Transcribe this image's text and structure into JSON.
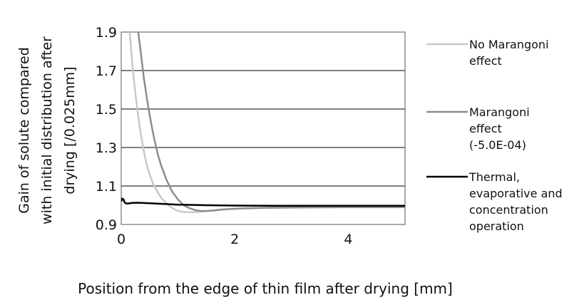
{
  "chart_data": {
    "type": "line",
    "xlabel": "Position from the edge of thin film after drying [mm]",
    "ylabel_lines": [
      "Gain of solute compared",
      "with initial distribution after",
      "drying [/0.025mm]"
    ],
    "xlim": [
      0,
      5
    ],
    "ylim": [
      0.9,
      1.9
    ],
    "x_ticks": [
      0,
      2,
      4
    ],
    "y_ticks": [
      0.9,
      1.1,
      1.3,
      1.5,
      1.7,
      1.9
    ],
    "y_tick_labels": [
      "0.9",
      "1.1",
      "1.3",
      "1.5",
      "1.7",
      "1.9"
    ],
    "grid": "horizontal",
    "legend_position": "right",
    "series": [
      {
        "name_lines": [
          "No Marangoni",
          "effect"
        ],
        "color": "#c8c8c8",
        "x": [
          0.15,
          0.2,
          0.25,
          0.3,
          0.35,
          0.4,
          0.45,
          0.5,
          0.55,
          0.6,
          0.7,
          0.8,
          0.9,
          1.0,
          1.1,
          1.2,
          1.3,
          1.5,
          1.8,
          2.2,
          3.0,
          4.0,
          5.0
        ],
        "y": [
          1.9,
          1.72,
          1.58,
          1.46,
          1.36,
          1.28,
          1.21,
          1.16,
          1.12,
          1.09,
          1.04,
          1.01,
          0.985,
          0.97,
          0.965,
          0.963,
          0.964,
          0.97,
          0.978,
          0.985,
          0.99,
          0.992,
          0.993
        ]
      },
      {
        "name_lines": [
          "Marangoni",
          "effect",
          "(-5.0E-04)"
        ],
        "color": "#8c8c8c",
        "x": [
          0.3,
          0.35,
          0.4,
          0.45,
          0.5,
          0.55,
          0.6,
          0.65,
          0.7,
          0.8,
          0.9,
          1.0,
          1.1,
          1.2,
          1.3,
          1.4,
          1.5,
          1.6,
          1.8,
          2.0,
          2.5,
          3.0,
          4.0,
          5.0
        ],
        "y": [
          1.9,
          1.78,
          1.66,
          1.56,
          1.47,
          1.39,
          1.32,
          1.26,
          1.21,
          1.13,
          1.07,
          1.03,
          1.0,
          0.985,
          0.975,
          0.97,
          0.97,
          0.972,
          0.978,
          0.982,
          0.986,
          0.988,
          0.99,
          0.99
        ]
      },
      {
        "name_lines": [
          "Thermal,",
          "evaporative and",
          "concentration",
          "operation"
        ],
        "color": "#000000",
        "x": [
          0.0,
          0.02,
          0.04,
          0.06,
          0.08,
          0.1,
          0.15,
          0.2,
          0.3,
          0.5,
          0.8,
          1.0,
          1.5,
          2.0,
          3.0,
          4.0,
          5.0
        ],
        "y": [
          1.02,
          1.035,
          1.03,
          1.015,
          1.01,
          1.008,
          1.01,
          1.012,
          1.013,
          1.01,
          1.006,
          1.003,
          1.0,
          0.998,
          0.997,
          0.997,
          0.997
        ]
      }
    ]
  }
}
